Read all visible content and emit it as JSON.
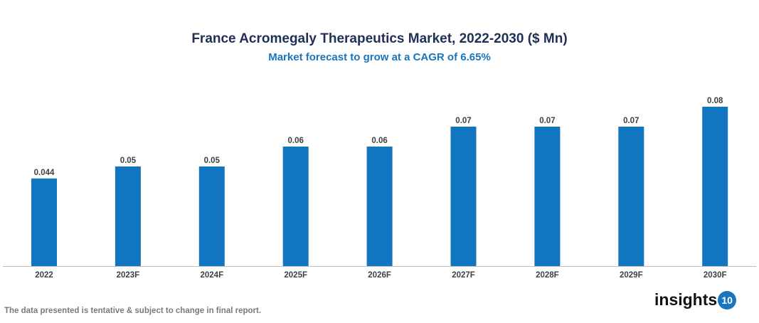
{
  "chart_data": {
    "type": "bar",
    "title": "France Acromegaly Therapeutics Market, 2022-2030 ($ Mn)",
    "subtitle": "Market forecast to grow at a CAGR of 6.65%",
    "categories": [
      "2022",
      "2023F",
      "2024F",
      "2025F",
      "2026F",
      "2027F",
      "2028F",
      "2029F",
      "2030F"
    ],
    "values": [
      0.044,
      0.05,
      0.05,
      0.06,
      0.06,
      0.07,
      0.07,
      0.07,
      0.08
    ],
    "labels": [
      "0.044",
      "0.05",
      "0.05",
      "0.06",
      "0.06",
      "0.07",
      "0.07",
      "0.07",
      "0.08"
    ],
    "xlabel": "",
    "ylabel": "",
    "ylim": [
      0,
      0.08
    ],
    "grid": false,
    "bar_color": "#1175bf"
  },
  "footnote": "The data presented is tentative & subject to change in final report.",
  "logo": {
    "text": "insights",
    "badge": "10"
  }
}
